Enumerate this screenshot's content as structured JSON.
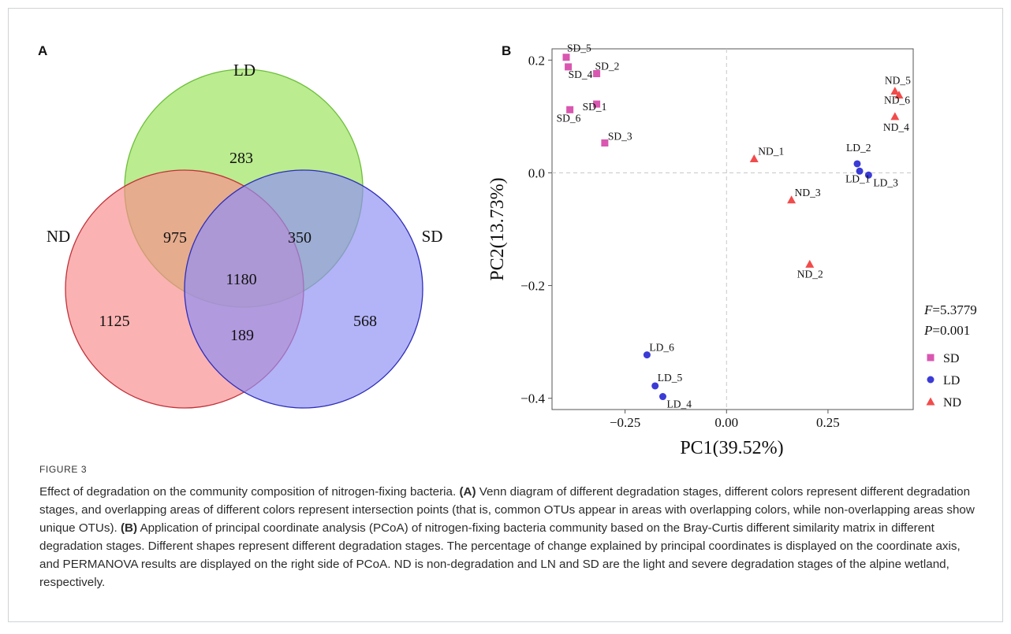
{
  "venn": {
    "panel_label": "A",
    "sets": [
      {
        "name": "LD",
        "color": "#9be35a",
        "stroke": "#6cbf3a"
      },
      {
        "name": "ND",
        "color": "#f98e8e",
        "stroke": "#c0323a"
      },
      {
        "name": "SD",
        "color": "#8f8ff5",
        "stroke": "#2e2eb8"
      }
    ],
    "counts": {
      "LD_only": "283",
      "ND_only": "1125",
      "SD_only": "568",
      "ND_LD": "975",
      "LD_SD": "350",
      "ND_SD": "189",
      "ND_LD_SD": "1180"
    }
  },
  "chart_data": {
    "type": "scatter",
    "panel_label": "B",
    "xlabel": "PC1(39.52%)",
    "ylabel": "PC2(13.73%)",
    "xlim": [
      -0.43,
      0.46
    ],
    "ylim": [
      -0.42,
      0.22
    ],
    "xticks": [
      -0.25,
      0.0,
      0.25
    ],
    "xtick_labels": [
      "−0.25",
      "0.00",
      "0.25"
    ],
    "yticks": [
      0.2,
      0.0,
      -0.2,
      -0.4
    ],
    "ytick_labels": [
      "0.2",
      "0.0",
      "−0.2",
      "−0.4"
    ],
    "reference_lines": {
      "x": 0,
      "y": 0
    },
    "grid": false,
    "stats": {
      "F": "5.3779",
      "P": "0.001"
    },
    "legend": {
      "placement": "right",
      "entries": [
        "SD",
        "LD",
        "ND"
      ]
    },
    "series": [
      {
        "name": "SD",
        "marker": "square",
        "color": "#d957b0",
        "points": [
          {
            "label": "SD_5",
            "x": -0.395,
            "y": 0.205
          },
          {
            "label": "SD_4",
            "x": -0.39,
            "y": 0.188
          },
          {
            "label": "SD_2",
            "x": -0.32,
            "y": 0.176
          },
          {
            "label": "SD_1",
            "x": -0.32,
            "y": 0.122
          },
          {
            "label": "SD_6",
            "x": -0.386,
            "y": 0.112
          },
          {
            "label": "SD_3",
            "x": -0.3,
            "y": 0.053
          }
        ]
      },
      {
        "name": "LD",
        "marker": "circle",
        "color": "#3b3bd6",
        "points": [
          {
            "label": "LD_2",
            "x": 0.322,
            "y": 0.016
          },
          {
            "label": "LD_1",
            "x": 0.328,
            "y": 0.003
          },
          {
            "label": "LD_3",
            "x": 0.35,
            "y": -0.004
          },
          {
            "label": "LD_6",
            "x": -0.196,
            "y": -0.323
          },
          {
            "label": "LD_5",
            "x": -0.176,
            "y": -0.378
          },
          {
            "label": "LD_4",
            "x": -0.157,
            "y": -0.397
          }
        ]
      },
      {
        "name": "ND",
        "marker": "triangle",
        "color": "#f24b4b",
        "points": [
          {
            "label": "ND_5",
            "x": 0.415,
            "y": 0.145
          },
          {
            "label": "ND_6",
            "x": 0.425,
            "y": 0.138
          },
          {
            "label": "ND_4",
            "x": 0.415,
            "y": 0.1
          },
          {
            "label": "ND_1",
            "x": 0.068,
            "y": 0.025
          },
          {
            "label": "ND_3",
            "x": 0.16,
            "y": -0.048
          },
          {
            "label": "ND_2",
            "x": 0.205,
            "y": -0.162
          }
        ]
      }
    ]
  },
  "caption": {
    "figure_label": "FIGURE 3",
    "intro": "Effect of degradation on the community composition of nitrogen-fixing bacteria.",
    "a_marker": "(A)",
    "a_text": "Venn diagram of different degradation stages, different colors represent different degradation stages, and overlapping areas of different colors represent intersection points (that is, common OTUs appear in areas with overlapping colors, while non-overlapping areas show unique OTUs).",
    "b_marker": "(B)",
    "b_text": "Application of principal coordinate analysis (PCoA) of nitrogen-fixing bacteria community based on the Bray-Curtis different similarity matrix in different degradation stages. Different shapes represent different degradation stages. The percentage of change explained by principal coordinates is displayed on the coordinate axis, and PERMANOVA results are displayed on the right side of PCoA. ND is non-degradation and LN and SD are the light and severe degradation stages of the alpine wetland, respectively."
  }
}
